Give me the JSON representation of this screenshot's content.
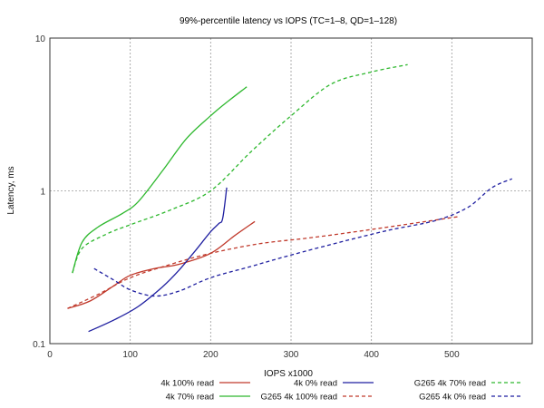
{
  "chart_data": {
    "type": "line",
    "title": "99%-percentile latency vs IOPS (TC=1–8, QD=1–128)",
    "xlabel": "IOPS x1000",
    "ylabel": "Latency, ms",
    "xlim": [
      0,
      600
    ],
    "ylim": [
      0.1,
      10
    ],
    "yscale": "log",
    "grid": true,
    "xticks": [
      0,
      100,
      200,
      300,
      400,
      500
    ],
    "yticks": [
      {
        "value": 0.1,
        "label": "0.1"
      },
      {
        "value": 1,
        "label": "1"
      },
      {
        "value": 10,
        "label": "10"
      }
    ],
    "legend_position": "bottom-right",
    "series": [
      {
        "name": "4k 100% read",
        "color": "#c0392b",
        "dash": "solid",
        "x": [
          22,
          50,
          80,
          100,
          130,
          160,
          200,
          230,
          255
        ],
        "y": [
          0.17,
          0.19,
          0.24,
          0.28,
          0.31,
          0.33,
          0.39,
          0.51,
          0.63
        ]
      },
      {
        "name": "4k 70% read",
        "color": "#2eb82e",
        "dash": "solid",
        "x": [
          28,
          40,
          60,
          90,
          110,
          140,
          170,
          200,
          220,
          245
        ],
        "y": [
          0.29,
          0.46,
          0.58,
          0.71,
          0.85,
          1.35,
          2.2,
          3.1,
          3.8,
          4.8
        ]
      },
      {
        "name": "4k 0% read",
        "color": "#1f1fa0",
        "dash": "solid",
        "x": [
          48,
          80,
          110,
          140,
          160,
          180,
          200,
          210,
          215,
          220
        ],
        "y": [
          0.12,
          0.143,
          0.175,
          0.235,
          0.3,
          0.4,
          0.54,
          0.61,
          0.66,
          1.05
        ]
      },
      {
        "name": "G265 4k 100% read",
        "color": "#c0392b",
        "dash": "dashed",
        "x": [
          22,
          60,
          100,
          150,
          200,
          260,
          320,
          380,
          440,
          510
        ],
        "y": [
          0.17,
          0.21,
          0.27,
          0.33,
          0.39,
          0.45,
          0.49,
          0.54,
          0.6,
          0.68
        ]
      },
      {
        "name": "G265 4k 70% read",
        "color": "#2eb82e",
        "dash": "dashed",
        "x": [
          28,
          40,
          70,
          100,
          150,
          200,
          250,
          300,
          350,
          400,
          445
        ],
        "y": [
          0.29,
          0.42,
          0.52,
          0.6,
          0.75,
          1.0,
          1.8,
          3.1,
          5.0,
          6.0,
          6.7
        ]
      },
      {
        "name": "G265 4k 0% read",
        "color": "#1f1fa0",
        "dash": "dashed",
        "x": [
          55,
          80,
          100,
          130,
          160,
          200,
          250,
          300,
          360,
          420,
          480,
          520,
          550,
          575
        ],
        "y": [
          0.31,
          0.26,
          0.225,
          0.205,
          0.22,
          0.27,
          0.32,
          0.38,
          0.46,
          0.55,
          0.64,
          0.78,
          1.05,
          1.2
        ]
      }
    ]
  }
}
